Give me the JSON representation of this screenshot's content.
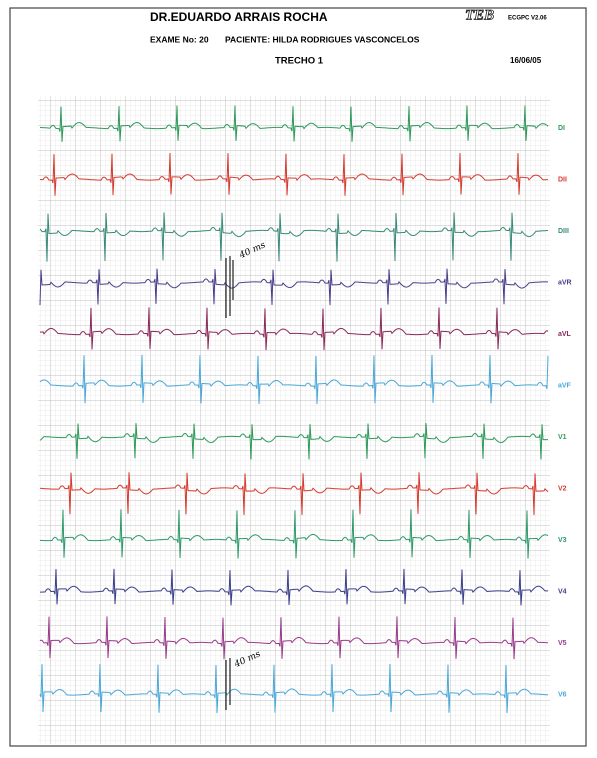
{
  "header": {
    "doctor": "DR.EDUARDO ARRAIS ROCHA",
    "logo": "TEB",
    "software": "ECGPC V2.06",
    "exam": "EXAME No: 20",
    "patient": "PACIENTE: HILDA RODRIGUES VASCONCELOS",
    "segment": "TRECHO 1",
    "date": "16/06/05"
  },
  "leads": [
    {
      "label": "DI",
      "color": "#2e9a5a"
    },
    {
      "label": "DII",
      "color": "#d63a2e"
    },
    {
      "label": "DIII",
      "color": "#3a8a7a"
    },
    {
      "label": "aVR",
      "color": "#4a3f8a"
    },
    {
      "label": "aVL",
      "color": "#8a2a5a"
    },
    {
      "label": "aVF",
      "color": "#4aa8d8"
    },
    {
      "label": "V1",
      "color": "#2e9a5a"
    },
    {
      "label": "V2",
      "color": "#d63a2e"
    },
    {
      "label": "V3",
      "color": "#2e9a6a"
    },
    {
      "label": "V4",
      "color": "#3a3f8a"
    },
    {
      "label": "V5",
      "color": "#9a3a8a"
    },
    {
      "label": "V6",
      "color": "#4aa8d8"
    }
  ],
  "annotations": [
    "40 ms",
    "40 ms"
  ]
}
